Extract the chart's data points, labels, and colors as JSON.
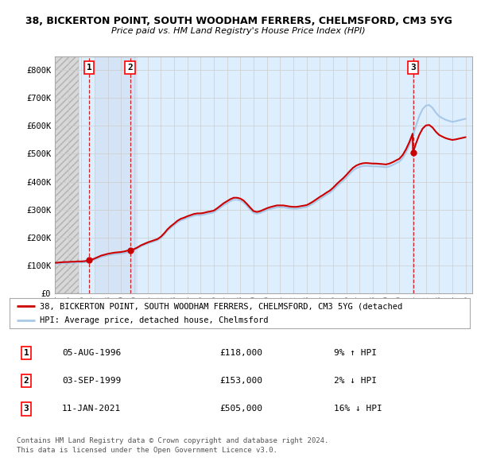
{
  "title_line1": "38, BICKERTON POINT, SOUTH WOODHAM FERRERS, CHELMSFORD, CM3 5YG",
  "title_line2": "Price paid vs. HM Land Registry's House Price Index (HPI)",
  "ylim": [
    0,
    850000
  ],
  "yticks": [
    0,
    100000,
    200000,
    300000,
    400000,
    500000,
    600000,
    700000,
    800000
  ],
  "ytick_labels": [
    "£0",
    "£100K",
    "£200K",
    "£300K",
    "£400K",
    "£500K",
    "£600K",
    "£700K",
    "£800K"
  ],
  "sale_dates": [
    1996.59,
    1999.67,
    2021.03
  ],
  "sale_prices": [
    118000,
    153000,
    505000
  ],
  "sale_labels": [
    "1",
    "2",
    "3"
  ],
  "legend_line1": "38, BICKERTON POINT, SOUTH WOODHAM FERRERS, CHELMSFORD, CM3 5YG (detached",
  "legend_line2": "HPI: Average price, detached house, Chelmsford",
  "table_rows": [
    [
      "1",
      "05-AUG-1996",
      "£118,000",
      "9% ↑ HPI"
    ],
    [
      "2",
      "03-SEP-1999",
      "£153,000",
      "2% ↓ HPI"
    ],
    [
      "3",
      "11-JAN-2021",
      "£505,000",
      "16% ↓ HPI"
    ]
  ],
  "footer_line1": "Contains HM Land Registry data © Crown copyright and database right 2024.",
  "footer_line2": "This data is licensed under the Open Government Licence v3.0.",
  "hpi_color": "#a8c8e8",
  "price_color": "#cc0000",
  "grid_color": "#cccccc",
  "plot_bg": "#ddeeff",
  "hatch_bg": "#d8d8d8",
  "sale2_bg": "#ccdcee",
  "xlim_left": 1994.0,
  "xlim_right": 2025.5
}
